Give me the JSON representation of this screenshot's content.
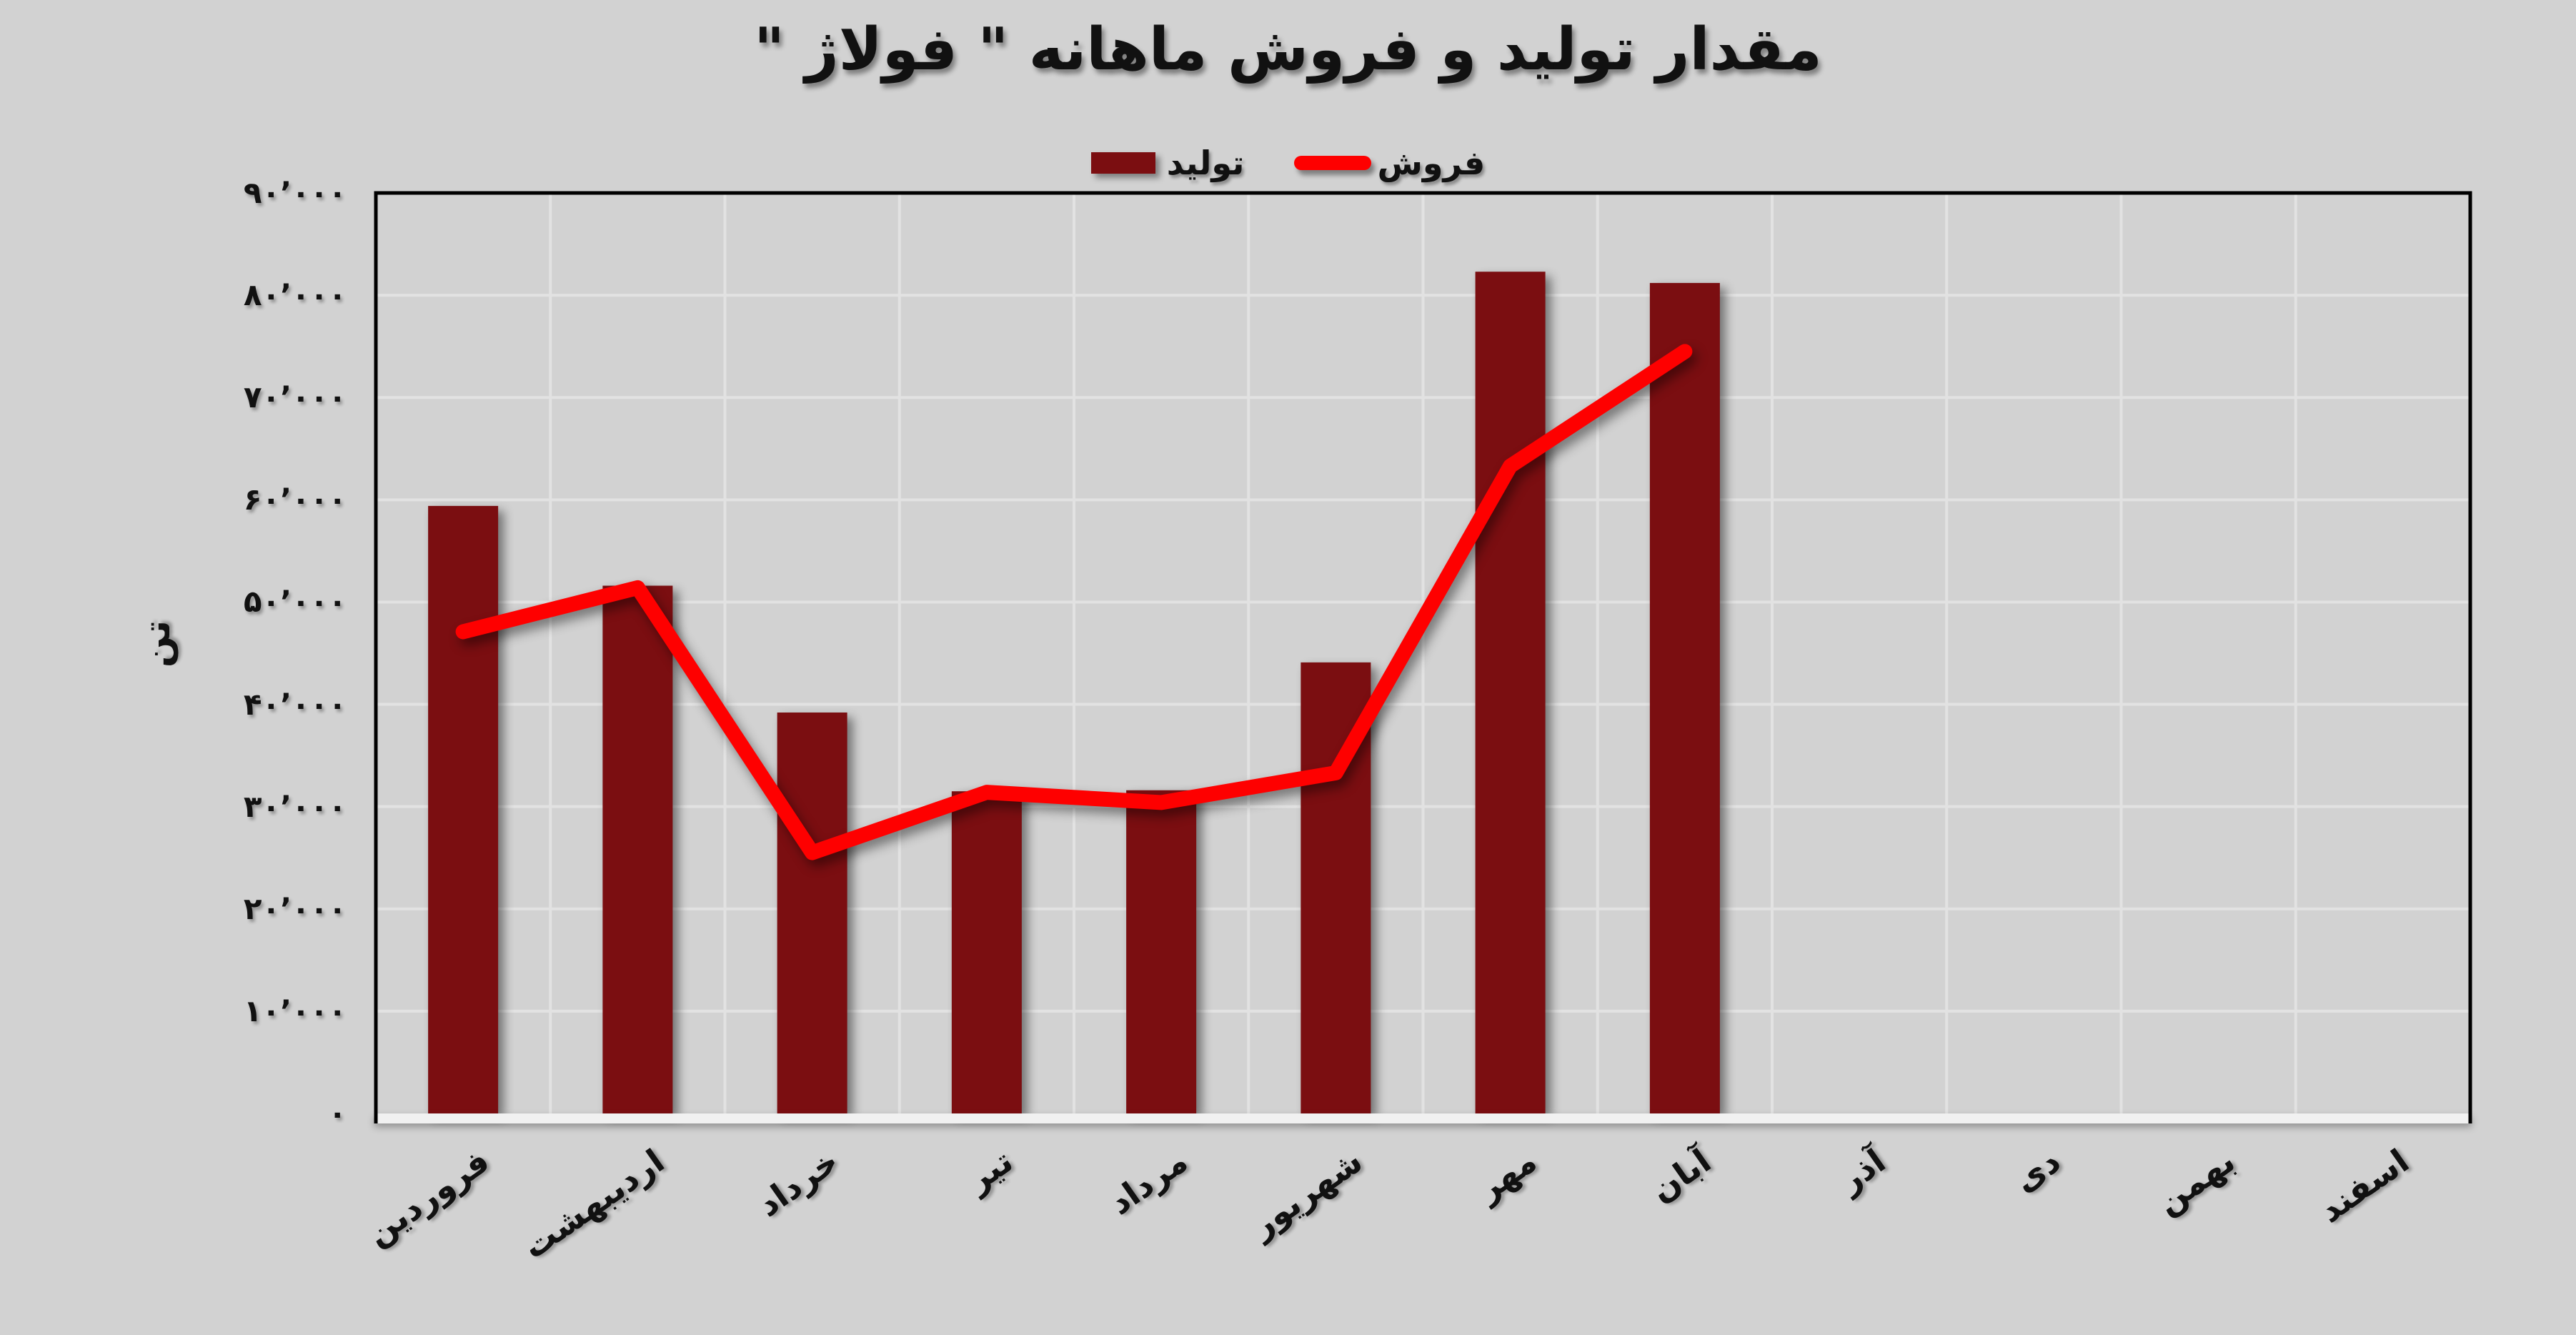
{
  "title": "مقدار تولید و فروش ماهانه \" فولاژ \"",
  "legend": {
    "production": "تولید",
    "sales": "فروش"
  },
  "y_axis": {
    "title": "تن",
    "min": 0,
    "max": 90000,
    "step": 10000,
    "tick_labels": [
      "۰",
      "۱۰٬۰۰۰",
      "۲۰٬۰۰۰",
      "۳۰٬۰۰۰",
      "۴۰٬۰۰۰",
      "۵۰٬۰۰۰",
      "۶۰٬۰۰۰",
      "۷۰٬۰۰۰",
      "۸۰٬۰۰۰",
      "۹۰٬۰۰۰"
    ]
  },
  "x_axis": {
    "slugs": [
      "farvardin",
      "ordibehesht",
      "khordad",
      "tir",
      "mordad",
      "shahrivar",
      "mehr",
      "aban",
      "azar",
      "dey",
      "bahman",
      "esfand"
    ]
  },
  "chart_data": {
    "type": "bar",
    "title": "مقدار تولید و فروش ماهانه \" فولاژ \"",
    "categories": [
      "فروردین",
      "اردیبهشت",
      "خرداد",
      "تیر",
      "مرداد",
      "شهریور",
      "مهر",
      "آبان",
      "آذر",
      "دی",
      "بهمن",
      "اسفند"
    ],
    "series": [
      {
        "name": "تولید",
        "type": "bar",
        "color": "#7b0e11",
        "values": [
          59400,
          51600,
          39200,
          31500,
          31600,
          44100,
          82300,
          81200,
          0,
          0,
          0,
          0
        ]
      },
      {
        "name": "فروش",
        "type": "line",
        "color": "#fe0000",
        "values": [
          47100,
          51400,
          25500,
          31400,
          30400,
          33300,
          63300,
          74500,
          null,
          null,
          null,
          null
        ]
      }
    ],
    "xlabel": "",
    "ylabel": "تن",
    "ylim": [
      0,
      90000
    ],
    "grid": true,
    "legend_position": "top-center"
  },
  "colors": {
    "background": "#d2d2d2",
    "grid": "#e2e2e2",
    "plot_border": "#000000",
    "axis_strip": "#f1f1f1",
    "production": "#7b0e11",
    "sales": "#fe0000",
    "text": "#111111"
  }
}
